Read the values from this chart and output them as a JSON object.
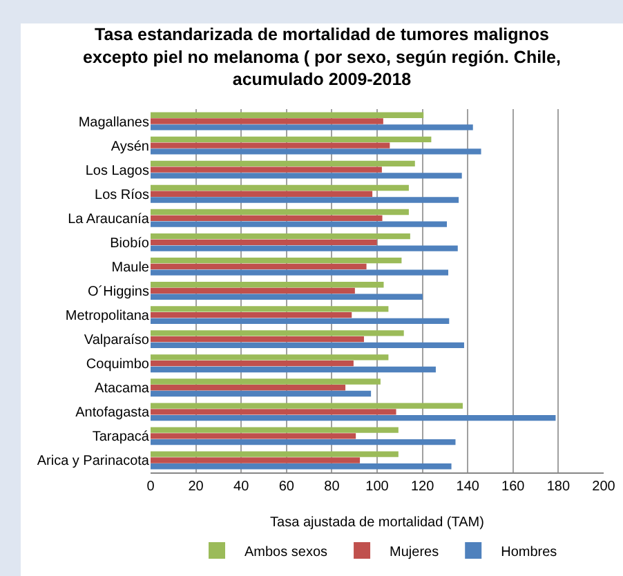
{
  "chart_data": {
    "type": "bar",
    "orientation": "horizontal",
    "title": "Tasa estandarizada de mortalidad de tumores malignos excepto piel no melanoma ( por sexo, según región. Chile, acumulado 2009-2018",
    "xlabel": "Tasa ajustada de mortalidad (TAM)",
    "categories": [
      "Magallanes",
      "Aysén",
      "Los Lagos",
      "Los Ríos",
      "La Araucanía",
      "Biobío",
      "Maule",
      "O´Higgins",
      "Metropolitana",
      "Valparaíso",
      "Coquimbo",
      "Atacama",
      "Antofagasta",
      "Tarapacá",
      "Arica y Parinacota"
    ],
    "series": [
      {
        "name": "Ambos sexos",
        "color": "#9bbb59",
        "values": [
          120.5,
          123.9,
          116.7,
          114,
          114,
          114.6,
          110.8,
          102.9,
          105,
          111.8,
          105,
          101.5,
          137.8,
          109.4,
          109.4
        ]
      },
      {
        "name": "Mujeres",
        "color": "#c0504d",
        "values": [
          102.7,
          105.6,
          102.1,
          97.9,
          102.3,
          99.9,
          95.3,
          90.2,
          88.8,
          94.2,
          89.6,
          86,
          108.4,
          90.6,
          92.4
        ]
      },
      {
        "name": "Hombres",
        "color": "#4f81bd",
        "values": [
          142.3,
          145.9,
          137.4,
          136,
          130.8,
          135.6,
          131.4,
          120.1,
          131.8,
          138.4,
          125.9,
          97.3,
          178.8,
          134.6,
          132.8
        ]
      }
    ],
    "xlim": [
      0,
      200
    ],
    "xticks": [
      0,
      20,
      40,
      60,
      80,
      100,
      120,
      140,
      160,
      180,
      200
    ],
    "grid": "x",
    "legend": "bottom"
  }
}
